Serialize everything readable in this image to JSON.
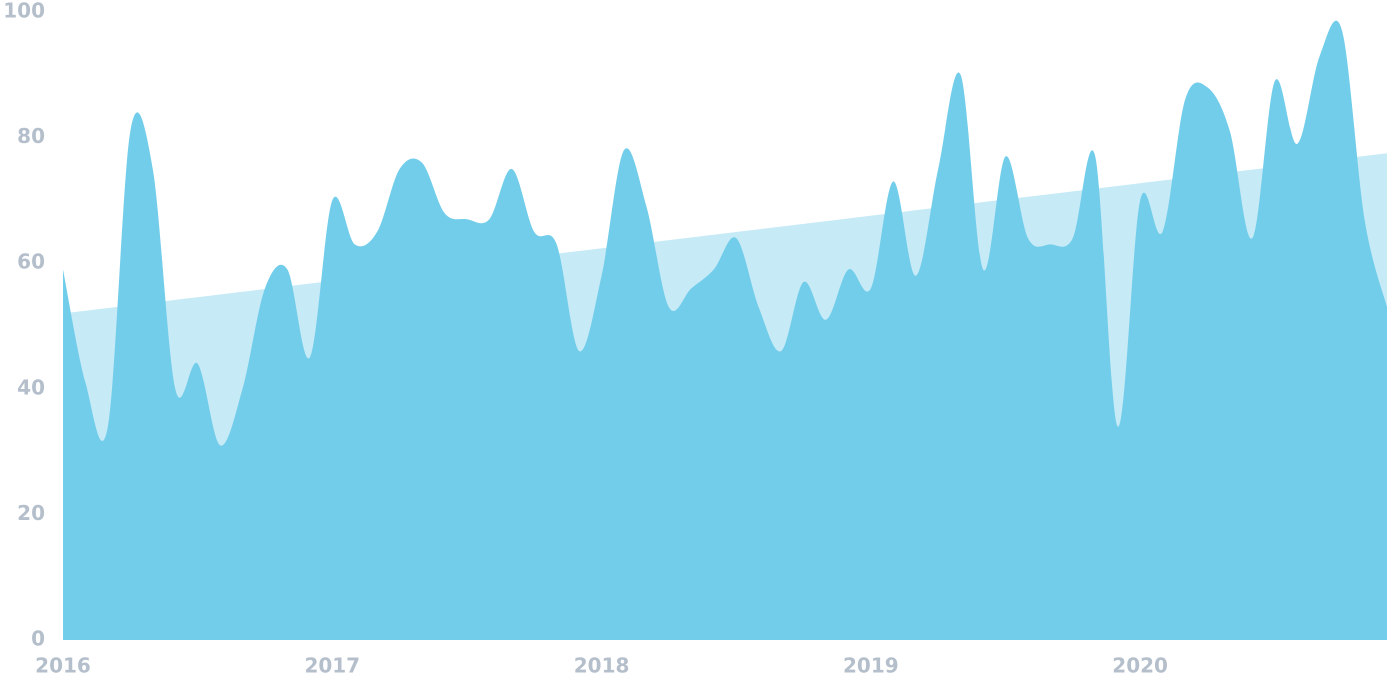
{
  "chart_data": {
    "type": "area",
    "series": [
      {
        "color": "#c6eaf6",
        "x": [
          2016,
          2020.9167
        ],
        "values": [
          52,
          77.5
        ]
      },
      {
        "color": "#72cdea",
        "x": [
          2016,
          2016.0833,
          2016.1667,
          2016.25,
          2016.3333,
          2016.4167,
          2016.5,
          2016.5833,
          2016.6667,
          2016.75,
          2016.8333,
          2016.9167,
          2017,
          2017.0833,
          2017.1667,
          2017.25,
          2017.3333,
          2017.4167,
          2017.5,
          2017.5833,
          2017.6667,
          2017.75,
          2017.8333,
          2017.9167,
          2018,
          2018.0833,
          2018.1667,
          2018.25,
          2018.3333,
          2018.4167,
          2018.5,
          2018.5833,
          2018.6667,
          2018.75,
          2018.8333,
          2018.9167,
          2019,
          2019.0833,
          2019.1667,
          2019.25,
          2019.3333,
          2019.4167,
          2019.5,
          2019.5833,
          2019.6667,
          2019.75,
          2019.8333,
          2019.9167,
          2020,
          2020.0833,
          2020.1667,
          2020.25,
          2020.3333,
          2020.4167,
          2020.5,
          2020.5833,
          2020.6667,
          2020.75,
          2020.8333,
          2020.9167
        ],
        "values": [
          59,
          41,
          34,
          81,
          75,
          40,
          44,
          31,
          40,
          56,
          59,
          45,
          70,
          63,
          65,
          75,
          76,
          68,
          67,
          67,
          75,
          65,
          63,
          46,
          58,
          78,
          69,
          53,
          56,
          59,
          64,
          53,
          46,
          57,
          51,
          59,
          56,
          73,
          58,
          75,
          90,
          59,
          77,
          64,
          63,
          64,
          77,
          34,
          70,
          65,
          86,
          88,
          81,
          64,
          89,
          79,
          93,
          97,
          67,
          53
        ]
      }
    ],
    "xlim": [
      2016,
      2020.9167
    ],
    "xticks": [
      2016,
      2017,
      2018,
      2019,
      2020
    ],
    "ylim": [
      0,
      100
    ],
    "yticks": [
      0,
      20,
      40,
      60,
      80,
      100
    ],
    "grid": false
  }
}
